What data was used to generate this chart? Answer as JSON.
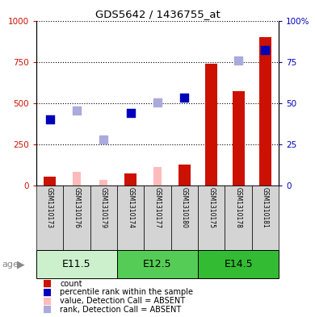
{
  "title": "GDS5642 / 1436755_at",
  "samples": [
    "GSM1310173",
    "GSM1310176",
    "GSM1310179",
    "GSM1310174",
    "GSM1310177",
    "GSM1310180",
    "GSM1310175",
    "GSM1310178",
    "GSM1310181"
  ],
  "count_values": [
    55,
    0,
    0,
    75,
    0,
    125,
    740,
    570,
    900
  ],
  "value_absent": [
    0,
    85,
    35,
    0,
    110,
    0,
    0,
    0,
    0
  ],
  "rank_values": [
    400,
    0,
    0,
    440,
    0,
    535,
    0,
    0,
    820
  ],
  "rank_absent_val": [
    0,
    455,
    280,
    0,
    505,
    0,
    0,
    760,
    0
  ],
  "count_color": "#cc1100",
  "rank_color": "#0000bb",
  "value_absent_color": "#ffbbbb",
  "rank_absent_color": "#aaaadd",
  "ylim_left": [
    0,
    1000
  ],
  "ylim_right": [
    0,
    100
  ],
  "yticks_left": [
    0,
    250,
    500,
    750,
    1000
  ],
  "yticks_right": [
    0,
    25,
    50,
    75,
    100
  ],
  "ytick_labels_left": [
    "0",
    "250",
    "500",
    "750",
    "1000"
  ],
  "ytick_labels_right": [
    "0",
    "25",
    "50",
    "75",
    "100%"
  ],
  "group_info": [
    {
      "label": "E11.5",
      "color": "#ccf0cc",
      "start": 0,
      "end": 3
    },
    {
      "label": "E12.5",
      "color": "#55cc55",
      "start": 3,
      "end": 6
    },
    {
      "label": "E14.5",
      "color": "#33bb33",
      "start": 6,
      "end": 9
    }
  ],
  "legend_items": [
    {
      "color": "#cc1100",
      "label": "count"
    },
    {
      "color": "#0000bb",
      "label": "percentile rank within the sample"
    },
    {
      "color": "#ffbbbb",
      "label": "value, Detection Call = ABSENT"
    },
    {
      "color": "#aaaadd",
      "label": "rank, Detection Call = ABSENT"
    }
  ],
  "age_label": "age"
}
